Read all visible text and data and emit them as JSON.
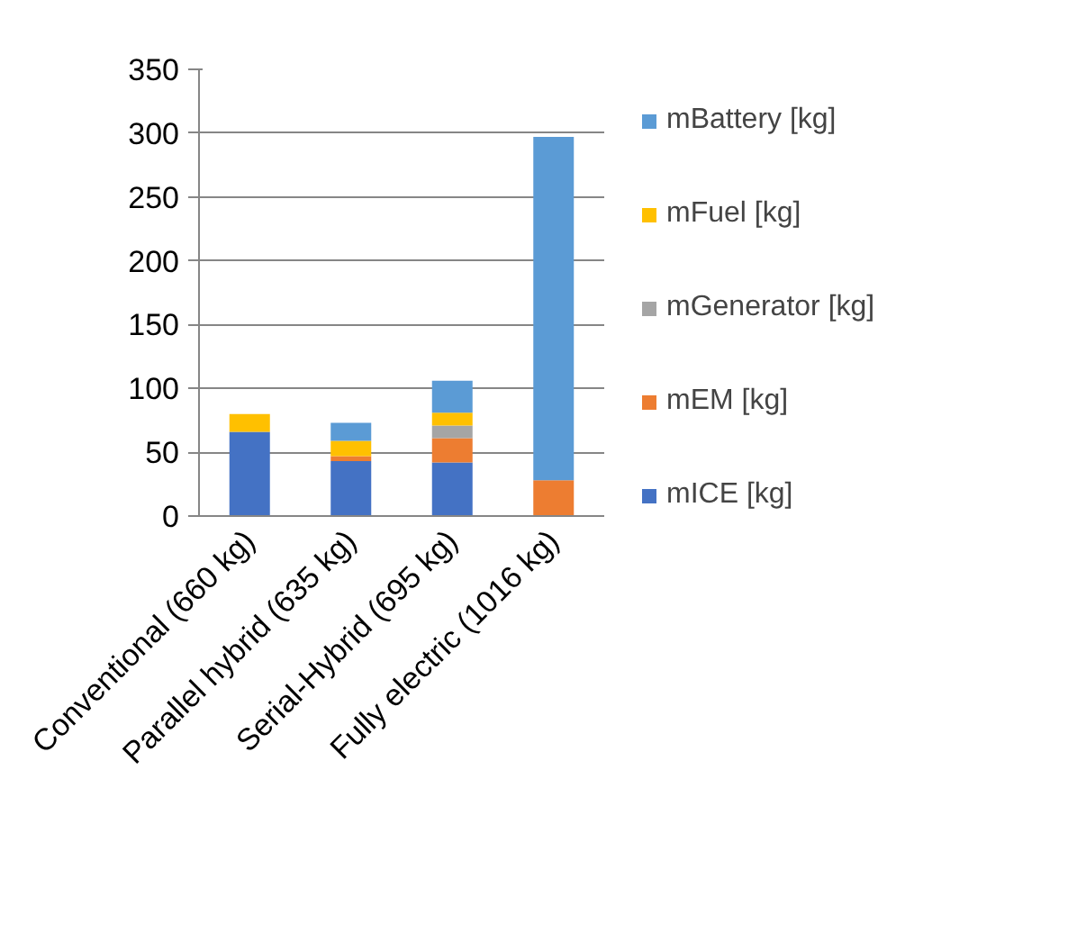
{
  "chart_data": {
    "type": "bar",
    "stacked": true,
    "categories": [
      "Conventional (660 kg)",
      "Parallel hybrid (635 kg)",
      "Serial-Hybrid (695 kg)",
      "Fully electric (1016 kg)"
    ],
    "series": [
      {
        "name": "mICE [kg]",
        "color": "#4472c4",
        "values": [
          66,
          43,
          42,
          0
        ]
      },
      {
        "name": "mEM [kg]",
        "color": "#ed7d31",
        "values": [
          0,
          4,
          19,
          28
        ]
      },
      {
        "name": "mGenerator [kg]",
        "color": "#a5a5a5",
        "values": [
          0,
          0,
          10,
          0
        ]
      },
      {
        "name": "mFuel [kg]",
        "color": "#ffc000",
        "values": [
          14,
          12,
          10,
          0
        ]
      },
      {
        "name": "mBattery [kg]",
        "color": "#5b9bd5",
        "values": [
          0,
          14,
          25,
          269
        ]
      }
    ],
    "ylim": [
      0,
      350
    ],
    "yticks": [
      0,
      50,
      100,
      150,
      200,
      250,
      300,
      350
    ],
    "grid": "y",
    "legend": "right"
  }
}
